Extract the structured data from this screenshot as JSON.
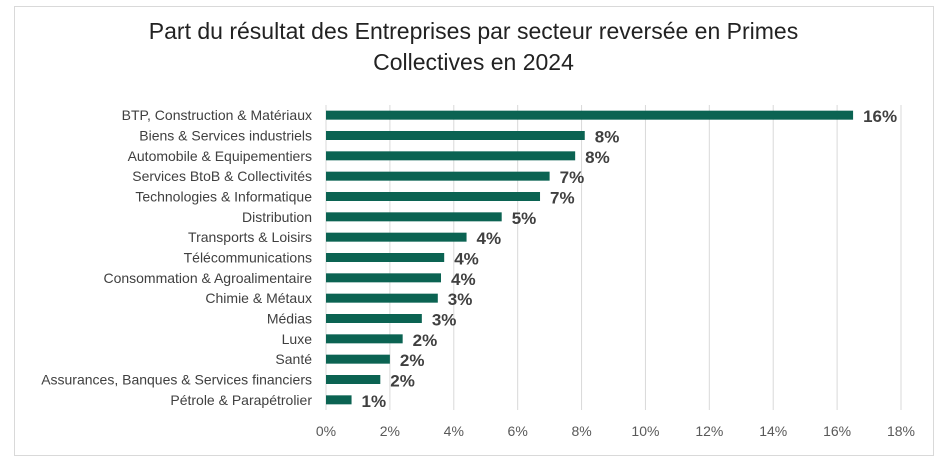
{
  "chart_data": {
    "type": "bar",
    "orientation": "horizontal",
    "title_line1": "Part du résultat des Entreprises par secteur reversée en Primes",
    "title_line2": "Collectives en 2024",
    "categories": [
      "BTP, Construction & Matériaux",
      "Biens & Services industriels",
      "Automobile & Equipementiers",
      "Services BtoB & Collectivités",
      "Technologies & Informatique",
      "Distribution",
      "Transports & Loisirs",
      "Télécommunications",
      "Consommation & Agroalimentaire",
      "Chimie & Métaux",
      "Médias",
      "Luxe",
      "Santé",
      "Assurances, Banques & Services financiers",
      "Pétrole & Parapétrolier"
    ],
    "values": [
      16.5,
      8.1,
      7.8,
      7.0,
      6.7,
      5.5,
      4.4,
      3.7,
      3.6,
      3.5,
      3.0,
      2.4,
      2.0,
      1.7,
      0.8
    ],
    "value_labels": [
      "16%",
      "8%",
      "8%",
      "7%",
      "7%",
      "5%",
      "4%",
      "4%",
      "4%",
      "3%",
      "3%",
      "2%",
      "2%",
      "2%",
      "1%"
    ],
    "xlim": [
      0,
      18
    ],
    "xticks": [
      0,
      2,
      4,
      6,
      8,
      10,
      12,
      14,
      16,
      18
    ],
    "xtick_labels": [
      "0%",
      "2%",
      "4%",
      "6%",
      "8%",
      "10%",
      "12%",
      "14%",
      "16%",
      "18%"
    ],
    "grid": true,
    "legend": "none",
    "bar_color": "#0b6352",
    "grid_color": "#d9d9d9"
  }
}
